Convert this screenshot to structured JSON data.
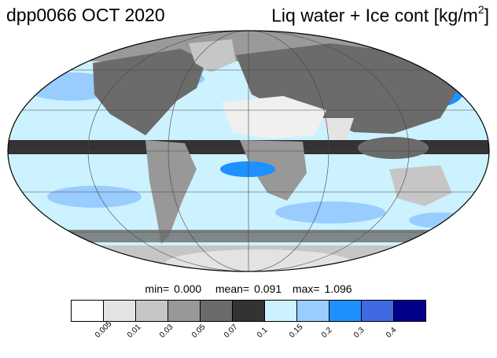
{
  "title": {
    "left": "dpp0066 OCT 2020",
    "right_main": "Liq water + Ice cont [kg/m",
    "right_sup": "2",
    "right_end": "]"
  },
  "stats": {
    "min_label": "min=",
    "min_value": "0.000",
    "mean_label": "mean=",
    "mean_value": "0.091",
    "max_label": "max=",
    "max_value": "1.096"
  },
  "colorbar": {
    "colors": [
      "#ffffff",
      "#e3e3e3",
      "#c6c6c6",
      "#989898",
      "#6b6b6b",
      "#333333",
      "#ccf2ff",
      "#99ccff",
      "#1e90ff",
      "#4169e1",
      "#00008b"
    ],
    "ticks": [
      "0.005",
      "0.01",
      "0.03",
      "0.05",
      "0.07",
      "0.1",
      "0.15",
      "0.2",
      "0.3",
      "0.4"
    ]
  }
}
